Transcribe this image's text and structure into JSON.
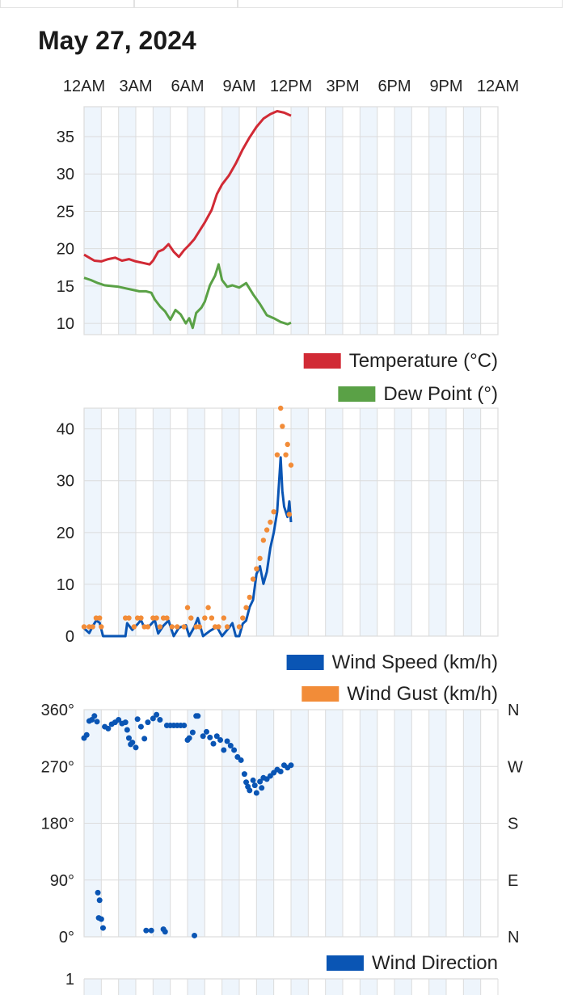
{
  "header": {
    "date": "May 27, 2024"
  },
  "time_axis": [
    "12AM",
    "3AM",
    "6AM",
    "9AM",
    "12PM",
    "3PM",
    "6PM",
    "9PM",
    "12AM"
  ],
  "colors": {
    "temperature": "#d12a35",
    "dew_point": "#5aa146",
    "wind_speed": "#0a55b4",
    "wind_gust": "#f28c38",
    "wind_direction": "#0a55b4",
    "band": "#eef5fc",
    "grid": "#dcdcdc"
  },
  "chart_data": [
    {
      "type": "line",
      "name": "temperature-dewpoint",
      "x_unit": "hours since 12AM",
      "xlim": [
        0,
        24
      ],
      "ylim": [
        8.5,
        39
      ],
      "yticks": [
        10,
        15,
        20,
        25,
        30,
        35
      ],
      "series": [
        {
          "name": "Temperature (°C)",
          "points": [
            [
              0,
              19.2
            ],
            [
              0.3,
              18.8
            ],
            [
              0.6,
              18.4
            ],
            [
              1,
              18.3
            ],
            [
              1.4,
              18.6
            ],
            [
              1.8,
              18.8
            ],
            [
              2.2,
              18.4
            ],
            [
              2.6,
              18.6
            ],
            [
              3,
              18.3
            ],
            [
              3.4,
              18.1
            ],
            [
              3.8,
              17.9
            ],
            [
              4.0,
              18.4
            ],
            [
              4.3,
              19.6
            ],
            [
              4.6,
              19.9
            ],
            [
              4.9,
              20.6
            ],
            [
              5.2,
              19.6
            ],
            [
              5.5,
              18.9
            ],
            [
              5.8,
              19.8
            ],
            [
              6.1,
              20.5
            ],
            [
              6.4,
              21.3
            ],
            [
              6.7,
              22.4
            ],
            [
              7.0,
              23.5
            ],
            [
              7.4,
              25.2
            ],
            [
              7.7,
              27.3
            ],
            [
              8.0,
              28.6
            ],
            [
              8.4,
              29.8
            ],
            [
              8.8,
              31.4
            ],
            [
              9.2,
              33.3
            ],
            [
              9.6,
              34.9
            ],
            [
              10.0,
              36.3
            ],
            [
              10.4,
              37.4
            ],
            [
              10.8,
              38.0
            ],
            [
              11.2,
              38.4
            ],
            [
              11.6,
              38.2
            ],
            [
              12.0,
              37.8
            ]
          ]
        },
        {
          "name": "Dew Point (°)",
          "points": [
            [
              0,
              16.1
            ],
            [
              0.4,
              15.8
            ],
            [
              0.8,
              15.4
            ],
            [
              1.2,
              15.1
            ],
            [
              1.6,
              15.0
            ],
            [
              2.0,
              14.9
            ],
            [
              2.4,
              14.7
            ],
            [
              2.8,
              14.5
            ],
            [
              3.2,
              14.3
            ],
            [
              3.6,
              14.3
            ],
            [
              3.9,
              14.1
            ],
            [
              4.1,
              13.2
            ],
            [
              4.4,
              12.3
            ],
            [
              4.7,
              11.6
            ],
            [
              5.0,
              10.5
            ],
            [
              5.3,
              11.8
            ],
            [
              5.6,
              11.2
            ],
            [
              5.9,
              10.0
            ],
            [
              6.1,
              10.7
            ],
            [
              6.3,
              9.4
            ],
            [
              6.5,
              11.4
            ],
            [
              6.8,
              12.1
            ],
            [
              7.0,
              12.9
            ],
            [
              7.3,
              15.1
            ],
            [
              7.6,
              16.4
            ],
            [
              7.8,
              17.9
            ],
            [
              8.0,
              15.8
            ],
            [
              8.3,
              14.9
            ],
            [
              8.6,
              15.1
            ],
            [
              9.0,
              14.8
            ],
            [
              9.4,
              15.4
            ],
            [
              9.8,
              13.9
            ],
            [
              10.2,
              12.6
            ],
            [
              10.6,
              11.1
            ],
            [
              11.0,
              10.7
            ],
            [
              11.4,
              10.2
            ],
            [
              11.8,
              9.9
            ],
            [
              12.0,
              10.1
            ]
          ]
        }
      ],
      "legend": [
        "Temperature (°C)",
        "Dew Point (°)"
      ]
    },
    {
      "type": "line",
      "name": "wind",
      "x_unit": "hours since 12AM",
      "xlim": [
        0,
        24
      ],
      "ylim": [
        0,
        44
      ],
      "yticks": [
        0,
        10,
        20,
        30,
        40
      ],
      "series": [
        {
          "name": "Wind Speed (km/h)",
          "style": "line",
          "points": [
            [
              0,
              1.5
            ],
            [
              0.3,
              0.6
            ],
            [
              0.5,
              1.9
            ],
            [
              0.7,
              3.0
            ],
            [
              0.9,
              2.6
            ],
            [
              1.1,
              0
            ],
            [
              1.5,
              0
            ],
            [
              2.0,
              0
            ],
            [
              2.4,
              0
            ],
            [
              2.5,
              2.5
            ],
            [
              2.8,
              1.2
            ],
            [
              3.1,
              2.3
            ],
            [
              3.3,
              3.1
            ],
            [
              3.5,
              1.6
            ],
            [
              3.8,
              2.0
            ],
            [
              4.1,
              3.1
            ],
            [
              4.3,
              0.5
            ],
            [
              4.6,
              2.0
            ],
            [
              4.9,
              3.0
            ],
            [
              5.2,
              0
            ],
            [
              5.5,
              1.6
            ],
            [
              5.9,
              2.1
            ],
            [
              6.1,
              0
            ],
            [
              6.4,
              1.8
            ],
            [
              6.6,
              3.5
            ],
            [
              6.9,
              0
            ],
            [
              7.3,
              1.0
            ],
            [
              7.7,
              1.8
            ],
            [
              8.0,
              0
            ],
            [
              8.4,
              1.6
            ],
            [
              8.6,
              2.5
            ],
            [
              8.8,
              0
            ],
            [
              9.0,
              0
            ],
            [
              9.2,
              2.4
            ],
            [
              9.4,
              3.0
            ],
            [
              9.6,
              5.6
            ],
            [
              9.8,
              7.0
            ],
            [
              10.0,
              12.0
            ],
            [
              10.2,
              13.5
            ],
            [
              10.4,
              10.1
            ],
            [
              10.6,
              12.4
            ],
            [
              10.8,
              17.0
            ],
            [
              11.0,
              20.0
            ],
            [
              11.2,
              24.0
            ],
            [
              11.4,
              34.5
            ],
            [
              11.5,
              28.0
            ],
            [
              11.6,
              25.0
            ],
            [
              11.8,
              23.0
            ],
            [
              11.9,
              26.0
            ],
            [
              12.0,
              22.0
            ]
          ]
        },
        {
          "name": "Wind Gust (km/h)",
          "style": "dots",
          "points": [
            [
              0,
              1.8
            ],
            [
              0.3,
              1.8
            ],
            [
              0.5,
              1.8
            ],
            [
              0.7,
              3.5
            ],
            [
              0.9,
              3.5
            ],
            [
              1.0,
              1.8
            ],
            [
              2.4,
              3.5
            ],
            [
              2.6,
              3.5
            ],
            [
              2.9,
              1.8
            ],
            [
              3.1,
              3.5
            ],
            [
              3.3,
              3.5
            ],
            [
              3.5,
              1.8
            ],
            [
              3.7,
              1.8
            ],
            [
              4.0,
              3.5
            ],
            [
              4.2,
              3.5
            ],
            [
              4.4,
              1.8
            ],
            [
              4.6,
              3.5
            ],
            [
              4.8,
              3.5
            ],
            [
              5.1,
              1.8
            ],
            [
              5.4,
              1.8
            ],
            [
              5.8,
              1.8
            ],
            [
              6.0,
              5.5
            ],
            [
              6.2,
              3.5
            ],
            [
              6.5,
              1.8
            ],
            [
              6.7,
              1.8
            ],
            [
              7.0,
              3.5
            ],
            [
              7.2,
              5.5
            ],
            [
              7.4,
              3.5
            ],
            [
              7.6,
              1.8
            ],
            [
              7.8,
              1.8
            ],
            [
              8.1,
              3.5
            ],
            [
              8.3,
              1.8
            ],
            [
              9.0,
              1.8
            ],
            [
              9.2,
              3.5
            ],
            [
              9.4,
              5.5
            ],
            [
              9.6,
              7.5
            ],
            [
              9.8,
              11.0
            ],
            [
              10.0,
              13.0
            ],
            [
              10.2,
              15.0
            ],
            [
              10.4,
              18.5
            ],
            [
              10.6,
              20.5
            ],
            [
              10.8,
              22.0
            ],
            [
              11.0,
              24.0
            ],
            [
              11.2,
              35.0
            ],
            [
              11.4,
              44.0
            ],
            [
              11.5,
              40.5
            ],
            [
              11.7,
              35.0
            ],
            [
              11.8,
              37.0
            ],
            [
              11.9,
              23.5
            ],
            [
              12.0,
              33.0
            ]
          ]
        }
      ],
      "legend": [
        "Wind Speed (km/h)",
        "Wind Gust (km/h)"
      ]
    },
    {
      "type": "scatter",
      "name": "wind-direction",
      "x_unit": "hours since 12AM",
      "xlim": [
        0,
        24
      ],
      "ylim": [
        0,
        360
      ],
      "yticks": [
        0,
        90,
        180,
        270,
        360
      ],
      "ytick_labels": [
        "0°",
        "90°",
        "180°",
        "270°",
        "360°"
      ],
      "right_labels": [
        "N",
        "E",
        "S",
        "W",
        "N"
      ],
      "series": [
        {
          "name": "Wind Direction",
          "points": [
            [
              0,
              315
            ],
            [
              0.15,
              320
            ],
            [
              0.3,
              342
            ],
            [
              0.45,
              344
            ],
            [
              0.6,
              350
            ],
            [
              0.75,
              341
            ],
            [
              0.8,
              70
            ],
            [
              0.85,
              30
            ],
            [
              0.9,
              58
            ],
            [
              1.0,
              28
            ],
            [
              1.1,
              14
            ],
            [
              1.2,
              333
            ],
            [
              1.4,
              330
            ],
            [
              1.6,
              337
            ],
            [
              1.8,
              340
            ],
            [
              2.0,
              344
            ],
            [
              2.2,
              338
            ],
            [
              2.4,
              340
            ],
            [
              2.5,
              328
            ],
            [
              2.6,
              315
            ],
            [
              2.7,
              305
            ],
            [
              2.8,
              308
            ],
            [
              3.0,
              300
            ],
            [
              3.1,
              345
            ],
            [
              3.3,
              333
            ],
            [
              3.5,
              314
            ],
            [
              3.6,
              10
            ],
            [
              3.9,
              10
            ],
            [
              3.7,
              340
            ],
            [
              4.0,
              346
            ],
            [
              4.2,
              352
            ],
            [
              4.4,
              344
            ],
            [
              4.6,
              12
            ],
            [
              4.7,
              8
            ],
            [
              4.8,
              335
            ],
            [
              5.0,
              335
            ],
            [
              5.2,
              335
            ],
            [
              5.4,
              335
            ],
            [
              5.6,
              335
            ],
            [
              5.8,
              335
            ],
            [
              6.0,
              312
            ],
            [
              6.1,
              315
            ],
            [
              6.3,
              324
            ],
            [
              6.4,
              2
            ],
            [
              6.5,
              350
            ],
            [
              6.6,
              350
            ],
            [
              6.9,
              318
            ],
            [
              7.1,
              325
            ],
            [
              7.3,
              316
            ],
            [
              7.5,
              306
            ],
            [
              7.7,
              318
            ],
            [
              7.9,
              312
            ],
            [
              8.1,
              296
            ],
            [
              8.3,
              310
            ],
            [
              8.5,
              303
            ],
            [
              8.7,
              296
            ],
            [
              8.9,
              285
            ],
            [
              9.1,
              280
            ],
            [
              9.3,
              258
            ],
            [
              9.4,
              245
            ],
            [
              9.5,
              238
            ],
            [
              9.6,
              232
            ],
            [
              9.8,
              248
            ],
            [
              9.9,
              240
            ],
            [
              10.0,
              228
            ],
            [
              10.2,
              246
            ],
            [
              10.3,
              236
            ],
            [
              10.4,
              252
            ],
            [
              10.6,
              250
            ],
            [
              10.8,
              255
            ],
            [
              11.0,
              260
            ],
            [
              11.2,
              265
            ],
            [
              11.4,
              262
            ],
            [
              11.6,
              272
            ],
            [
              11.8,
              268
            ],
            [
              12.0,
              272
            ]
          ]
        }
      ],
      "legend": [
        "Wind Direction"
      ]
    },
    {
      "type": "line",
      "name": "partial-chart",
      "ytick_labels": [
        "1"
      ],
      "series": []
    }
  ]
}
